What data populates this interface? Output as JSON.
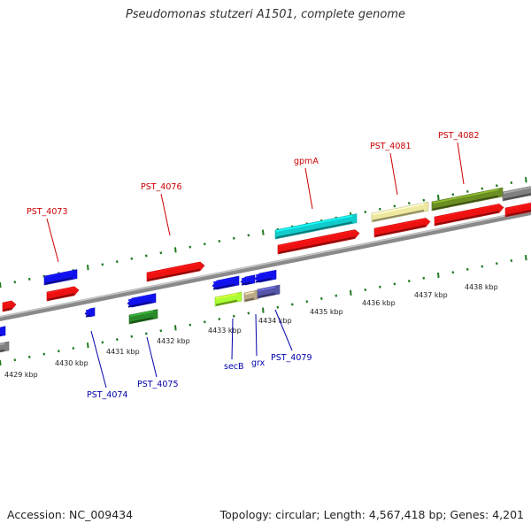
{
  "title": "Pseudomonas stutzeri A1501, complete genome",
  "footer": {
    "accession": "Accession: NC_009434",
    "topology": "Topology: circular; Length: 4,567,418 bp; Genes: 4,201"
  },
  "colors": {
    "backbone": "#8a8a8a",
    "ticks": "#1f7a1f",
    "forward_label": "#cc0000",
    "reverse_label": "#0000aa",
    "red": "#ee1111",
    "blue": "#1111ee",
    "green": "#2a8a2a",
    "cyan": "#11cccc",
    "khaki": "#eee8a0",
    "olive": "#6b8e23",
    "grey": "#808080",
    "lime": "#aaff33",
    "tan": "#bbaa88",
    "slate": "#5555aa"
  },
  "scale_labels": [
    "4429 kbp",
    "4430 kbp",
    "4431 kbp",
    "4432 kbp",
    "4433 kbp",
    "4434 kbp",
    "4435 kbp",
    "4436 kbp",
    "4437 kbp",
    "4438 kbp"
  ],
  "forward_labels": [
    "PST_4073",
    "PST_4076",
    "gpmA",
    "PST_4081",
    "PST_4082"
  ],
  "reverse_labels": [
    "PST_4074",
    "PST_4075",
    "secB",
    "grx",
    "PST_4079"
  ]
}
